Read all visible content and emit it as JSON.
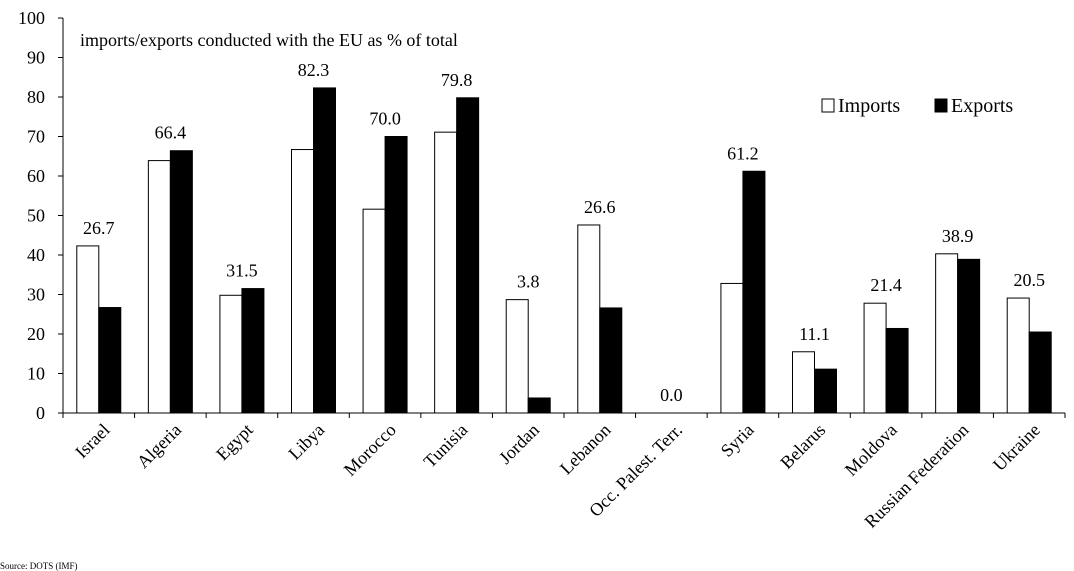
{
  "chart_data": {
    "type": "bar",
    "annotation": "imports/exports conducted with the EU as % of total",
    "categories": [
      "Israel",
      "Algeria",
      "Egypt",
      "Libya",
      "Morocco",
      "Tunisia",
      "Jordan",
      "Lebanon",
      "Occ. Palest. Terr.",
      "Syria",
      "Belarus",
      "Moldova",
      "Russian Federation",
      "Ukraine"
    ],
    "series": [
      {
        "name": "Imports",
        "color": "#ffffff",
        "values": [
          42.3,
          63.9,
          29.8,
          66.7,
          51.6,
          71.1,
          28.7,
          47.6,
          0.0,
          32.8,
          15.5,
          27.8,
          40.3,
          29.1
        ]
      },
      {
        "name": "Exports",
        "color": "#000000",
        "values": [
          26.7,
          66.4,
          31.5,
          82.3,
          70.0,
          79.8,
          3.8,
          26.6,
          0.0,
          61.2,
          11.1,
          21.4,
          38.9,
          20.5
        ]
      }
    ],
    "data_labels": [
      "26.7",
      "66.4",
      "31.5",
      "82.3",
      "70.0",
      "79.8",
      "3.8",
      "26.6",
      "0.0",
      "61.2",
      "11.1",
      "21.4",
      "38.9",
      "20.5"
    ],
    "ylim": [
      0,
      100
    ],
    "yticks": [
      "0",
      "10",
      "20",
      "30",
      "40",
      "50",
      "60",
      "70",
      "80",
      "90",
      "100"
    ],
    "xlabel": "",
    "ylabel": "",
    "legend_position": "top-right",
    "grid": false,
    "source": "Source: DOTS (IMF)"
  }
}
